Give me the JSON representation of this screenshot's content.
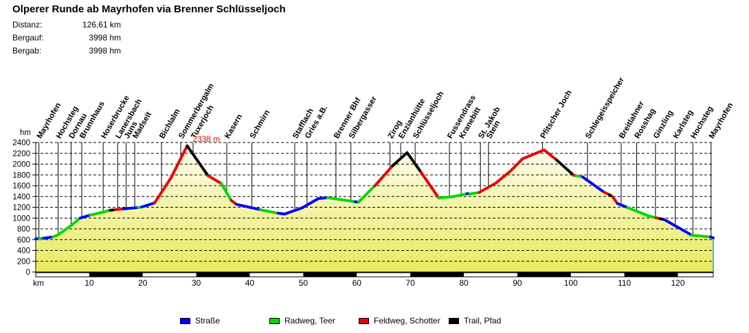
{
  "header": {
    "title": "Olperer Runde ab Mayrhofen via Brenner Schlüsseljoch",
    "stats": [
      {
        "label": "Distanz:",
        "value": "126,61 km"
      },
      {
        "label": "Bergauf:",
        "value": "3998 hm"
      },
      {
        "label": "Bergab:",
        "value": "3998 hm"
      }
    ]
  },
  "legend": {
    "items": [
      {
        "label": "Straße",
        "color": "#0000FF"
      },
      {
        "label": "Radweg, Teer",
        "color": "#00D800"
      },
      {
        "label": "Feldweg, Schotter",
        "color": "#EE0000"
      },
      {
        "label": "Trail, Pfad",
        "color": "#000000"
      }
    ]
  },
  "chart_data": {
    "type": "area",
    "title": "Olperer Runde ab Mayrhofen via Brenner Schlüsseljoch",
    "xlabel": "km",
    "ylabel": "hm",
    "x_axis": {
      "label": "km",
      "min": 0,
      "max": 126.61,
      "tick_step": 10,
      "ticks": [
        10,
        20,
        30,
        40,
        50,
        60,
        70,
        80,
        90,
        100,
        110,
        120
      ]
    },
    "y_axis": {
      "label": "hm",
      "min": 0,
      "max": 2400,
      "tick_step": 200,
      "ticks": [
        0,
        200,
        400,
        600,
        800,
        1000,
        1200,
        1400,
        1600,
        1800,
        2000,
        2200,
        2400
      ]
    },
    "grid": "dashed horizontal every 200 hm, vertical solid line per waypoint",
    "fill": {
      "top": "#FEFEF2",
      "bottom": "#E9EA5E",
      "right_edge_color": "#008888"
    },
    "scale_bar": {
      "step_km": 10,
      "colors": [
        "#FFFFFF",
        "#000000"
      ]
    },
    "peak_annotation": {
      "text": "2338 m",
      "km": 28.8,
      "color": "#FF0000"
    },
    "surfaces": {
      "S": {
        "name": "Straße",
        "color": "#0000FF"
      },
      "R": {
        "name": "Radweg, Teer",
        "color": "#00D800"
      },
      "F": {
        "name": "Feldweg, Schotter",
        "color": "#EE0000"
      },
      "T": {
        "name": "Trail, Pfad",
        "color": "#000000"
      }
    },
    "waypoints": [
      {
        "name": "Mayrhofen",
        "km": 0.6
      },
      {
        "name": "Hochsteg",
        "km": 4.2
      },
      {
        "name": "Dornau",
        "km": 6.6
      },
      {
        "name": "Brunnhaus",
        "km": 8.6
      },
      {
        "name": "Hoserbrucke",
        "km": 12.6
      },
      {
        "name": "Lanersbach",
        "km": 15.3
      },
      {
        "name": "Juns",
        "km": 16.9
      },
      {
        "name": "Madseit",
        "km": 18.5
      },
      {
        "name": "Bichlalm",
        "km": 23.5
      },
      {
        "name": "Sommerbergalm",
        "km": 27.1
      },
      {
        "name": "Tuxerjoch",
        "km": 29.4
      },
      {
        "name": "Kasern",
        "km": 35.7
      },
      {
        "name": "Schmirn",
        "km": 40.4
      },
      {
        "name": "Stafflach",
        "km": 48.4
      },
      {
        "name": "Gries a.B.",
        "km": 50.7
      },
      {
        "name": "Brenner Bhf",
        "km": 56.1
      },
      {
        "name": "Silbergasser",
        "km": 58.9
      },
      {
        "name": "Zirog",
        "km": 66.2
      },
      {
        "name": "Enzianhütte",
        "km": 68.2
      },
      {
        "name": "Schlüsseljoch",
        "km": 70.9
      },
      {
        "name": "Fussendrass",
        "km": 77.3
      },
      {
        "name": "Kranebitt",
        "km": 79.5
      },
      {
        "name": "St. Jakob",
        "km": 83.1
      },
      {
        "name": "Stein",
        "km": 84.6
      },
      {
        "name": "Pfitscher Joch",
        "km": 94.7
      },
      {
        "name": "Schlegeisspeicher",
        "km": 103.1
      },
      {
        "name": "Breitlahner",
        "km": 109.4
      },
      {
        "name": "Rosshag",
        "km": 112.3
      },
      {
        "name": "Ginzling",
        "km": 115.8
      },
      {
        "name": "Karlsteg",
        "km": 119.5
      },
      {
        "name": "Hochsteg",
        "km": 122.8
      },
      {
        "name": "Mayrhofen",
        "km": 126.2
      }
    ],
    "profile": [
      [
        0,
        615,
        "S"
      ],
      [
        0.7,
        620,
        "R"
      ],
      [
        1.5,
        627,
        "S"
      ],
      [
        3.2,
        650,
        "R"
      ],
      [
        4.2,
        690,
        "R"
      ],
      [
        6.7,
        870,
        "R"
      ],
      [
        8.3,
        1000,
        "S"
      ],
      [
        10.2,
        1055,
        "R"
      ],
      [
        12.6,
        1110,
        "R"
      ],
      [
        13.9,
        1145,
        "T"
      ],
      [
        14.9,
        1155,
        "F"
      ],
      [
        16.4,
        1170,
        "S"
      ],
      [
        19.2,
        1195,
        "R"
      ],
      [
        19.8,
        1205,
        "S"
      ],
      [
        22.2,
        1280,
        "F"
      ],
      [
        25.3,
        1750,
        "F"
      ],
      [
        28.3,
        2338,
        "T"
      ],
      [
        32.2,
        1785,
        "F"
      ],
      [
        34.7,
        1640,
        "R"
      ],
      [
        36.5,
        1330,
        "F"
      ],
      [
        37.5,
        1255,
        "S"
      ],
      [
        42,
        1155,
        "R"
      ],
      [
        45.3,
        1090,
        "S"
      ],
      [
        46.5,
        1075,
        "S"
      ],
      [
        49.8,
        1190,
        "S"
      ],
      [
        52.8,
        1360,
        "S"
      ],
      [
        54.5,
        1378,
        "R"
      ],
      [
        57.5,
        1335,
        "R"
      ],
      [
        59.7,
        1302,
        "S"
      ],
      [
        60.3,
        1295,
        "R"
      ],
      [
        63.4,
        1600,
        "F"
      ],
      [
        66.7,
        1970,
        "T"
      ],
      [
        69.4,
        2212,
        "T"
      ],
      [
        72,
        1850,
        "F"
      ],
      [
        75.3,
        1372,
        "R"
      ],
      [
        78,
        1398,
        "R"
      ],
      [
        80.6,
        1452,
        "S"
      ],
      [
        81.1,
        1448,
        "R"
      ],
      [
        82.8,
        1472,
        "F"
      ],
      [
        86,
        1650,
        "F"
      ],
      [
        88.7,
        1870,
        "F"
      ],
      [
        91,
        2100,
        "F"
      ],
      [
        95,
        2262,
        "F"
      ],
      [
        97.3,
        2080,
        "T"
      ],
      [
        100.5,
        1795,
        "F"
      ],
      [
        101,
        1785,
        "R"
      ],
      [
        102.2,
        1762,
        "S"
      ],
      [
        106.2,
        1480,
        "F"
      ],
      [
        107.2,
        1432,
        "T"
      ],
      [
        107.8,
        1396,
        "F"
      ],
      [
        108.7,
        1270,
        "S"
      ],
      [
        110.6,
        1195,
        "R"
      ],
      [
        114.5,
        1040,
        "R"
      ],
      [
        115.9,
        1005,
        "F"
      ],
      [
        116.7,
        988,
        "T"
      ],
      [
        117.5,
        970,
        "S"
      ],
      [
        122.6,
        682,
        "R"
      ],
      [
        126.1,
        650,
        "S"
      ],
      [
        126.61,
        632,
        null
      ]
    ]
  }
}
